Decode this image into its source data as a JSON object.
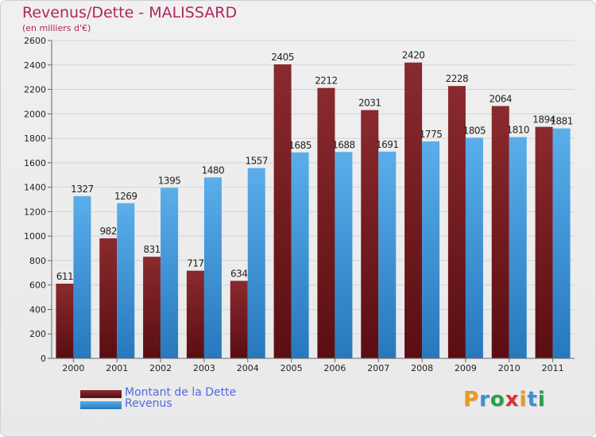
{
  "title": "Revenus/Dette - MALISSARD",
  "subtitle": "(en milliers d'€)",
  "logo": {
    "letters": [
      "P",
      "r",
      "o",
      "x",
      "i",
      "t",
      "i"
    ],
    "colors": [
      "#e69a1e",
      "#3b8fd6",
      "#2a9d4a",
      "#e0302a",
      "#e69a1e",
      "#3b8fd6",
      "#2a9d4a"
    ]
  },
  "colors": {
    "dette": "#7d2428",
    "revenus": "#4da3e4",
    "dette_dark": "#5a0e12",
    "revenus_dark": "#2778bd"
  },
  "chart_data": {
    "type": "bar",
    "title": "Revenus/Dette - MALISSARD",
    "subtitle": "(en milliers d'€)",
    "categories": [
      "2000",
      "2001",
      "2002",
      "2003",
      "2004",
      "2005",
      "2006",
      "2007",
      "2008",
      "2009",
      "2010",
      "2011"
    ],
    "series": [
      {
        "name": "Montant de la Dette",
        "values": [
          611,
          982,
          831,
          717,
          634,
          2405,
          2212,
          2031,
          2420,
          2228,
          2064,
          1894
        ]
      },
      {
        "name": "Revenus",
        "values": [
          1327,
          1269,
          1395,
          1480,
          1557,
          1685,
          1688,
          1691,
          1775,
          1805,
          1810,
          1881
        ]
      }
    ],
    "ylim": [
      0,
      2600
    ],
    "yticks": [
      0,
      200,
      400,
      600,
      800,
      1000,
      1200,
      1400,
      1600,
      1800,
      2000,
      2200,
      2400,
      2600
    ],
    "grid": true,
    "legend": "bottom-left"
  }
}
